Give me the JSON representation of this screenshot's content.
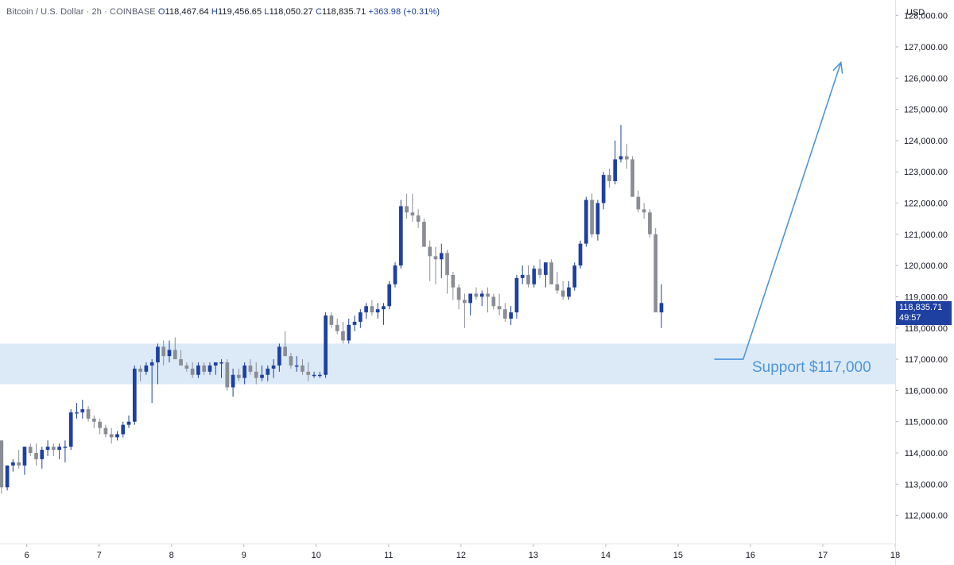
{
  "header": {
    "symbol": "Bitcoin / U.S. Dollar · 2h · COINBASE",
    "o_label": "O",
    "o_value": "118,467.64",
    "h_label": "H",
    "h_value": "119,456.65",
    "l_label": "L",
    "l_value": "118,050.27",
    "c_label": "C",
    "c_value": "118,835.71",
    "change": "+363.98 (+0.31%)"
  },
  "price_axis": {
    "currency": "USD",
    "current_price": "118,835.71",
    "countdown": "49:57"
  },
  "colors": {
    "up": "#1e40a0",
    "down": "#8a8d94",
    "support_zone": "#d6e6f7",
    "annotation": "#4d95d9"
  },
  "annotation": {
    "support_label": "Support $117,000"
  },
  "chart_data": {
    "type": "candlestick",
    "title": "",
    "y_ticks": [
      "112,000.00",
      "113,000.00",
      "114,000.00",
      "115,000.00",
      "116,000.00",
      "117,000.00",
      "118,000.00",
      "119,000.00",
      "120,000.00",
      "121,000.00",
      "122,000.00",
      "123,000.00",
      "124,000.00",
      "125,000.00",
      "126,000.00",
      "127,000.00",
      "128,000.00"
    ],
    "x_ticks": [
      "6",
      "7",
      "8",
      "9",
      "10",
      "11",
      "12",
      "13",
      "14",
      "15",
      "16",
      "17",
      "18"
    ],
    "x_tick_values": [
      6,
      7,
      8,
      9,
      10,
      11,
      12,
      13,
      14,
      15,
      16,
      17,
      18
    ],
    "xlim": [
      5.63,
      18.0
    ],
    "ylim": [
      111100,
      128500
    ],
    "support_zone": [
      116200,
      117500
    ],
    "projection_arrow": {
      "start": [
        15.5,
        117000
      ],
      "pivot": [
        15.9,
        117000
      ],
      "end": [
        17.25,
        126500
      ]
    },
    "bar_interval_days": 0.0833,
    "candles": [
      [
        5.65,
        114400,
        114400,
        112700,
        112900
      ],
      [
        5.73,
        112900,
        113600,
        112800,
        113600
      ],
      [
        5.81,
        113600,
        113800,
        113400,
        113700
      ],
      [
        5.89,
        113700,
        114100,
        113500,
        113600
      ],
      [
        5.97,
        113600,
        114200,
        113300,
        114200
      ],
      [
        6.05,
        114200,
        114300,
        113900,
        114000
      ],
      [
        6.13,
        114000,
        114300,
        113600,
        113800
      ],
      [
        6.21,
        113800,
        114200,
        113500,
        114100
      ],
      [
        6.29,
        114100,
        114400,
        113900,
        114200
      ],
      [
        6.37,
        114200,
        114300,
        113900,
        114100
      ],
      [
        6.45,
        114100,
        114300,
        113800,
        114200
      ],
      [
        6.53,
        114200,
        114400,
        113700,
        114200
      ],
      [
        6.61,
        114200,
        115400,
        114100,
        115300
      ],
      [
        6.69,
        115300,
        115600,
        115100,
        115300
      ],
      [
        6.77,
        115300,
        115700,
        115100,
        115400
      ],
      [
        6.85,
        115400,
        115500,
        115000,
        115100
      ],
      [
        6.93,
        115100,
        115200,
        114800,
        115000
      ],
      [
        7.01,
        115000,
        115100,
        114600,
        114800
      ],
      [
        7.09,
        114800,
        114900,
        114500,
        114600
      ],
      [
        7.17,
        114600,
        114800,
        114300,
        114500
      ],
      [
        7.25,
        114500,
        114700,
        114400,
        114600
      ],
      [
        7.33,
        114600,
        115000,
        114500,
        114900
      ],
      [
        7.41,
        114900,
        115200,
        114800,
        115000
      ],
      [
        7.49,
        115000,
        116800,
        114900,
        116700
      ],
      [
        7.57,
        116700,
        116800,
        116300,
        116600
      ],
      [
        7.65,
        116600,
        116900,
        116500,
        116800
      ],
      [
        7.73,
        116800,
        117000,
        115600,
        116900
      ],
      [
        7.81,
        116900,
        117500,
        116200,
        117400
      ],
      [
        7.89,
        117400,
        117600,
        116800,
        117100
      ],
      [
        7.97,
        117100,
        117600,
        116900,
        117300
      ],
      [
        8.05,
        117300,
        117700,
        117000,
        117000
      ],
      [
        8.13,
        117000,
        117300,
        116800,
        116800
      ],
      [
        8.21,
        116800,
        116900,
        116600,
        116700
      ],
      [
        8.29,
        116700,
        116900,
        116400,
        116500
      ],
      [
        8.37,
        116500,
        116900,
        116400,
        116800
      ],
      [
        8.45,
        116800,
        116900,
        116500,
        116600
      ],
      [
        8.53,
        116600,
        116900,
        116500,
        116800
      ],
      [
        8.61,
        116800,
        116900,
        116500,
        116900
      ],
      [
        8.69,
        116900,
        117000,
        116400,
        116900
      ],
      [
        8.77,
        116900,
        117000,
        116000,
        116100
      ],
      [
        8.85,
        116100,
        116700,
        115800,
        116500
      ],
      [
        8.93,
        116500,
        116700,
        116300,
        116400
      ],
      [
        9.01,
        116400,
        116900,
        116200,
        116800
      ],
      [
        9.09,
        116800,
        117000,
        116500,
        116600
      ],
      [
        9.17,
        116600,
        116900,
        116200,
        116400
      ],
      [
        9.25,
        116400,
        116800,
        116300,
        116500
      ],
      [
        9.33,
        116500,
        116800,
        116300,
        116700
      ],
      [
        9.41,
        116700,
        117000,
        116400,
        116800
      ],
      [
        9.49,
        116800,
        117500,
        116600,
        117400
      ],
      [
        9.57,
        117400,
        117900,
        117100,
        117100
      ],
      [
        9.65,
        117100,
        117200,
        116700,
        116800
      ],
      [
        9.73,
        116800,
        117100,
        116600,
        116800
      ],
      [
        9.81,
        116800,
        117000,
        116500,
        116600
      ],
      [
        9.89,
        116600,
        116900,
        116300,
        116500
      ],
      [
        9.97,
        116500,
        116600,
        116400,
        116500
      ],
      [
        10.05,
        116500,
        116600,
        116400,
        116500
      ],
      [
        10.13,
        116500,
        118500,
        116400,
        118400
      ],
      [
        10.21,
        118400,
        118500,
        118000,
        118100
      ],
      [
        10.29,
        118100,
        118300,
        117800,
        117900
      ],
      [
        10.37,
        117900,
        118200,
        117500,
        117600
      ],
      [
        10.45,
        117600,
        118300,
        117500,
        118100
      ],
      [
        10.53,
        118100,
        118400,
        117900,
        118200
      ],
      [
        10.61,
        118200,
        118600,
        118000,
        118500
      ],
      [
        10.69,
        118500,
        118800,
        118300,
        118700
      ],
      [
        10.77,
        118700,
        118900,
        118400,
        118500
      ],
      [
        10.85,
        118500,
        118800,
        118300,
        118600
      ],
      [
        10.93,
        118600,
        118800,
        118100,
        118700
      ],
      [
        11.01,
        118700,
        119500,
        118600,
        119400
      ],
      [
        11.09,
        119400,
        120100,
        119300,
        120000
      ],
      [
        11.17,
        120000,
        122100,
        119900,
        121900
      ],
      [
        11.25,
        121900,
        122300,
        121500,
        121700
      ],
      [
        11.33,
        121700,
        122300,
        121400,
        121600
      ],
      [
        11.41,
        121600,
        121800,
        121200,
        121400
      ],
      [
        11.49,
        121400,
        121500,
        120600,
        120600
      ],
      [
        11.57,
        120600,
        120800,
        119500,
        120300
      ],
      [
        11.65,
        120300,
        120600,
        119400,
        120200
      ],
      [
        11.73,
        120200,
        120700,
        119600,
        120400
      ],
      [
        11.81,
        120400,
        120500,
        119100,
        119700
      ],
      [
        11.89,
        119700,
        119800,
        118900,
        119300
      ],
      [
        11.97,
        119300,
        119400,
        118600,
        118900
      ],
      [
        12.05,
        118900,
        119100,
        118000,
        118800
      ],
      [
        12.13,
        118800,
        119000,
        118400,
        119100
      ],
      [
        12.21,
        119100,
        119300,
        118900,
        119000
      ],
      [
        12.29,
        119000,
        119200,
        118700,
        119100
      ],
      [
        12.37,
        119100,
        119300,
        118500,
        119000
      ],
      [
        12.45,
        119000,
        119100,
        118600,
        118700
      ],
      [
        12.53,
        118700,
        119100,
        118400,
        118600
      ],
      [
        12.61,
        118600,
        118800,
        118200,
        118300
      ],
      [
        12.69,
        118300,
        118700,
        118100,
        118500
      ],
      [
        12.77,
        118500,
        119700,
        118300,
        119600
      ],
      [
        12.85,
        119600,
        120000,
        119400,
        119700
      ],
      [
        12.93,
        119700,
        120000,
        119300,
        119400
      ],
      [
        13.01,
        119400,
        120000,
        119300,
        119900
      ],
      [
        13.09,
        119900,
        120200,
        119600,
        119700
      ],
      [
        13.17,
        119700,
        120000,
        119300,
        120100
      ],
      [
        13.25,
        120100,
        120200,
        119400,
        119400
      ],
      [
        13.33,
        119400,
        119800,
        119100,
        119200
      ],
      [
        13.41,
        119200,
        119500,
        118900,
        119000
      ],
      [
        13.49,
        119000,
        119500,
        118900,
        119300
      ],
      [
        13.57,
        119300,
        120100,
        119200,
        120000
      ],
      [
        13.65,
        120000,
        120800,
        119900,
        120700
      ],
      [
        13.73,
        120700,
        122200,
        120600,
        122100
      ],
      [
        13.81,
        122100,
        122300,
        120900,
        121000
      ],
      [
        13.89,
        121000,
        122100,
        120800,
        122000
      ],
      [
        13.97,
        122000,
        123000,
        121800,
        122900
      ],
      [
        14.05,
        122900,
        123100,
        122500,
        122700
      ],
      [
        14.13,
        122700,
        124000,
        122600,
        123400
      ],
      [
        14.21,
        123400,
        124500,
        123300,
        123500
      ],
      [
        14.29,
        123500,
        123900,
        123100,
        123400
      ],
      [
        14.37,
        123400,
        123500,
        122200,
        122200
      ],
      [
        14.45,
        122200,
        122400,
        121700,
        121800
      ],
      [
        14.53,
        121800,
        122000,
        121500,
        121700
      ],
      [
        14.61,
        121700,
        121800,
        120900,
        121000
      ],
      [
        14.69,
        121000,
        121200,
        118500,
        118500
      ],
      [
        14.77,
        118500,
        119400,
        118000,
        118800
      ]
    ]
  }
}
